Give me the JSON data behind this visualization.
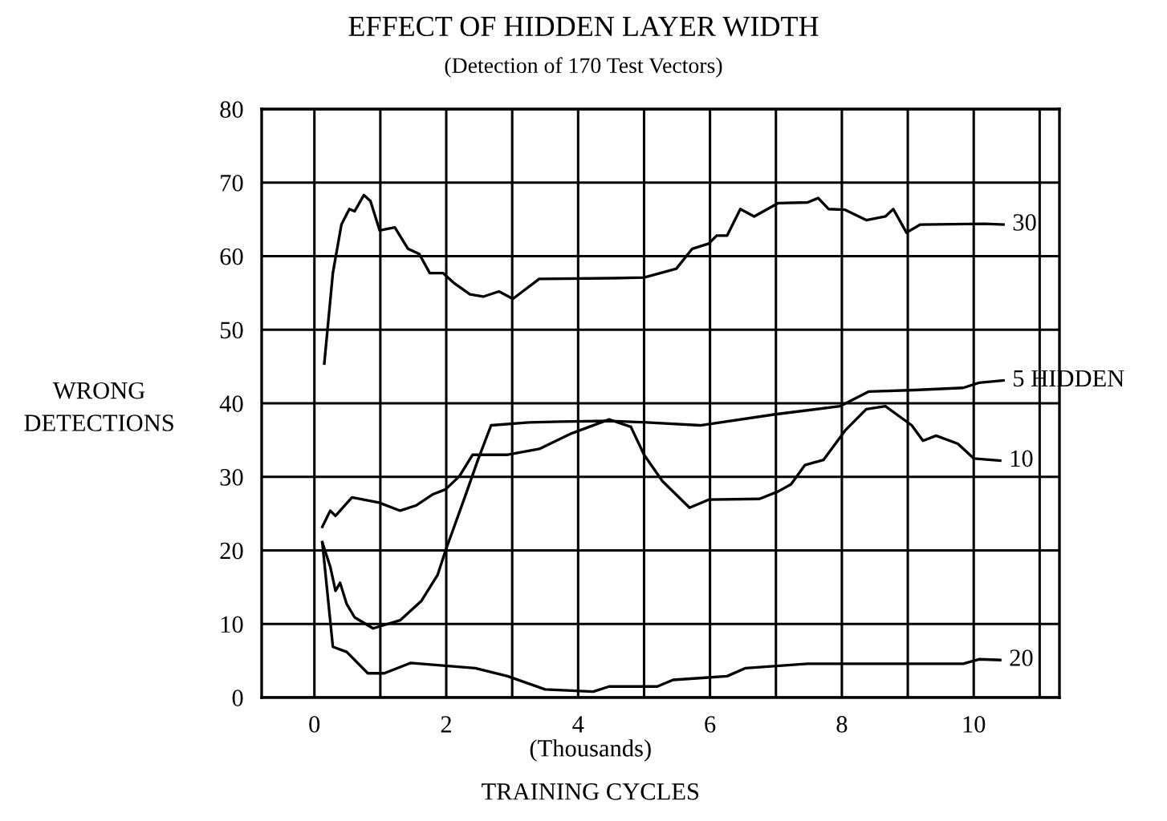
{
  "chart_data": {
    "type": "line",
    "title": "EFFECT OF HIDDEN LAYER WIDTH",
    "subtitle": "(Detection of 170 Test Vectors)",
    "xlabel": "TRAINING CYCLES",
    "ylabel": "WRONG\nDETECTIONS",
    "annotations": [
      "(Thousands)"
    ],
    "xlim": [
      -0.8,
      11.3
    ],
    "ylim": [
      0,
      80
    ],
    "xticks": [
      0,
      {
        "value": 1,
        "label": null
      },
      2,
      {
        "value": 3,
        "label": null
      },
      4,
      {
        "value": 5,
        "label": null
      },
      6,
      {
        "value": 7,
        "label": null
      },
      8,
      {
        "value": 9,
        "label": null
      },
      10,
      {
        "value": 11,
        "label": null
      }
    ],
    "yticks": [
      0,
      10,
      20,
      30,
      40,
      50,
      60,
      70,
      80
    ],
    "grid": true,
    "legend": false,
    "marker": "none",
    "line_style": "solid",
    "series": [
      {
        "name": "30",
        "color": "#000000",
        "x": [
          0.15,
          0.28,
          0.41,
          0.53,
          0.61,
          0.75,
          0.85,
          0.99,
          1.22,
          1.42,
          1.59,
          1.75,
          1.95,
          2.11,
          2.36,
          2.56,
          2.8,
          3.01,
          3.41,
          4.47,
          5.0,
          5.49,
          5.73,
          5.98,
          6.1,
          6.26,
          6.46,
          6.67,
          7.03,
          7.48,
          7.64,
          7.8,
          8.05,
          8.37,
          8.66,
          8.78,
          8.98,
          9.19,
          10.16,
          10.45
        ],
        "values": [
          45.4,
          57.7,
          64.3,
          66.4,
          66.1,
          68.3,
          67.5,
          63.5,
          63.9,
          61.0,
          60.3,
          57.7,
          57.7,
          56.4,
          54.8,
          54.5,
          55.2,
          54.2,
          56.9,
          57.0,
          57.1,
          58.3,
          61.0,
          61.7,
          62.8,
          62.8,
          66.4,
          65.4,
          67.2,
          67.3,
          67.9,
          66.4,
          66.3,
          64.9,
          65.4,
          66.4,
          63.2,
          64.3,
          64.4,
          64.3
        ]
      },
      {
        "name": "5 HIDDEN",
        "color": "#000000",
        "x": [
          0.12,
          0.24,
          0.32,
          0.39,
          0.49,
          0.61,
          0.89,
          1.3,
          1.62,
          1.87,
          1.99,
          2.28,
          2.48,
          2.68,
          3.25,
          3.74,
          4.47,
          5.04,
          5.85,
          6.99,
          7.97,
          8.41,
          9.1,
          9.84,
          10.08,
          10.45
        ],
        "values": [
          21.1,
          17.8,
          14.5,
          15.6,
          12.7,
          10.9,
          9.4,
          10.5,
          13.1,
          16.7,
          20.0,
          27.2,
          32.3,
          37.0,
          37.4,
          37.5,
          37.6,
          37.4,
          37.0,
          38.5,
          39.6,
          41.6,
          41.8,
          42.1,
          42.8,
          43.1
        ]
      },
      {
        "name": "10",
        "color": "#000000",
        "x": [
          0.12,
          0.24,
          0.32,
          0.57,
          0.98,
          1.3,
          1.54,
          1.79,
          1.99,
          2.2,
          2.4,
          2.93,
          3.41,
          3.9,
          4.47,
          4.8,
          5.0,
          5.28,
          5.69,
          5.98,
          6.75,
          7.03,
          7.23,
          7.44,
          7.72,
          8.05,
          8.37,
          8.66,
          9.06,
          9.23,
          9.43,
          9.76,
          10.0,
          10.4
        ],
        "values": [
          23.2,
          25.4,
          24.7,
          27.2,
          26.5,
          25.4,
          26.1,
          27.6,
          28.3,
          30.1,
          33.0,
          33.0,
          33.8,
          35.9,
          37.8,
          36.8,
          33.0,
          29.4,
          25.8,
          26.9,
          27.0,
          28.0,
          29.0,
          31.6,
          32.3,
          36.3,
          39.2,
          39.6,
          37.0,
          34.9,
          35.6,
          34.5,
          32.5,
          32.2
        ]
      },
      {
        "name": "20",
        "color": "#000000",
        "x": [
          0.12,
          0.28,
          0.49,
          0.81,
          1.06,
          1.46,
          2.44,
          2.93,
          3.5,
          4.23,
          4.47,
          5.2,
          5.44,
          5.93,
          6.26,
          6.54,
          7.48,
          9.84,
          10.08,
          10.4
        ],
        "values": [
          21.1,
          6.9,
          6.2,
          3.3,
          3.3,
          4.7,
          4.0,
          2.9,
          1.1,
          0.8,
          1.5,
          1.5,
          2.4,
          2.7,
          2.9,
          4.0,
          4.6,
          4.6,
          5.2,
          5.1
        ]
      }
    ]
  }
}
